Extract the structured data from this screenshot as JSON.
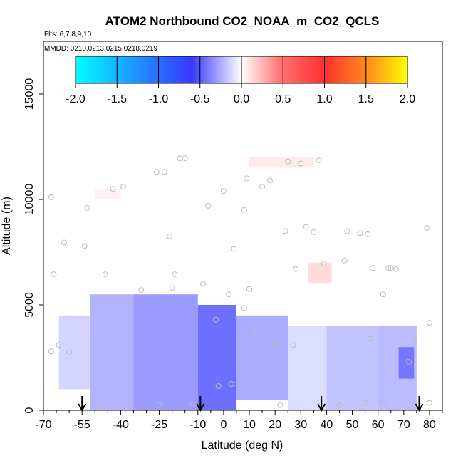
{
  "chart_data": {
    "type": "heatmap",
    "title": "ATOM2 Northbound CO2_NOAA_m_CO2_QCLS",
    "subtitle_flights": "Flts: 6,7,8,9,10",
    "subtitle_dates": "MMDD: 0210,0213,0215,0218,0219",
    "xlabel": "Latitude (deg N)",
    "ylabel": "Altitude (m)",
    "xlim": [
      -70,
      85
    ],
    "ylim": [
      0,
      17500
    ],
    "x_ticks": [
      -70,
      -55,
      -40,
      -25,
      -10,
      0,
      10,
      20,
      30,
      40,
      50,
      60,
      70,
      80
    ],
    "y_ticks": [
      0,
      5000,
      10000,
      15000
    ],
    "colorbar": {
      "min": -2.0,
      "max": 2.0,
      "ticks": [
        "-2.0",
        "-1.5",
        "-1.0",
        "-0.5",
        "0.0",
        "0.5",
        "1.0",
        "1.5",
        "2.0"
      ],
      "colors": [
        "#00ffff",
        "#2a6cff",
        "#3838ff",
        "#ffffff",
        "#ff3030",
        "#ff8c1a",
        "#ffff00"
      ]
    },
    "arrows_latitude": [
      -55,
      -9,
      38,
      76
    ],
    "regions": [
      {
        "lat": [
          -64,
          -52
        ],
        "alt": [
          1000,
          4500
        ],
        "value": -0.25
      },
      {
        "lat": [
          -52,
          -35
        ],
        "alt": [
          0,
          5500
        ],
        "value": -0.45
      },
      {
        "lat": [
          -35,
          -10
        ],
        "alt": [
          0,
          5500
        ],
        "value": -0.6
      },
      {
        "lat": [
          -10,
          5
        ],
        "alt": [
          0,
          5000
        ],
        "value": -0.85
      },
      {
        "lat": [
          5,
          25
        ],
        "alt": [
          500,
          4500
        ],
        "value": -0.5
      },
      {
        "lat": [
          25,
          40
        ],
        "alt": [
          0,
          4000
        ],
        "value": -0.2
      },
      {
        "lat": [
          40,
          60
        ],
        "alt": [
          0,
          4000
        ],
        "value": -0.35
      },
      {
        "lat": [
          60,
          75
        ],
        "alt": [
          0,
          4000
        ],
        "value": -0.4
      },
      {
        "lat": [
          68,
          74
        ],
        "alt": [
          1500,
          3000
        ],
        "value": -0.75
      },
      {
        "lat": [
          33,
          42
        ],
        "alt": [
          6000,
          7000
        ],
        "value": 0.2
      },
      {
        "lat": [
          10,
          35
        ],
        "alt": [
          11500,
          12000
        ],
        "value": 0.12
      },
      {
        "lat": [
          -50,
          -40
        ],
        "alt": [
          10000,
          10500
        ],
        "value": 0.08
      }
    ],
    "points": [
      {
        "lat": -67,
        "alt": 10100
      },
      {
        "lat": -62,
        "alt": 7950
      },
      {
        "lat": -66,
        "alt": 6450
      },
      {
        "lat": -67,
        "alt": 2800
      },
      {
        "lat": -64,
        "alt": 3100
      },
      {
        "lat": -60,
        "alt": 2750
      },
      {
        "lat": -54,
        "alt": 7800
      },
      {
        "lat": -53,
        "alt": 9600
      },
      {
        "lat": -43,
        "alt": 10500
      },
      {
        "lat": -39,
        "alt": 10600
      },
      {
        "lat": -46,
        "alt": 6450
      },
      {
        "lat": -44,
        "alt": 2800
      },
      {
        "lat": -43,
        "alt": 3600
      },
      {
        "lat": -32,
        "alt": 5700
      },
      {
        "lat": -26,
        "alt": 11300
      },
      {
        "lat": -23,
        "alt": 11300
      },
      {
        "lat": -21,
        "alt": 8250
      },
      {
        "lat": -20,
        "alt": 5800
      },
      {
        "lat": -19,
        "alt": 6450
      },
      {
        "lat": -17,
        "alt": 11950
      },
      {
        "lat": -15,
        "alt": 11950
      },
      {
        "lat": -8,
        "alt": 6000
      },
      {
        "lat": -6,
        "alt": 9700
      },
      {
        "lat": 0,
        "alt": 10400
      },
      {
        "lat": 2,
        "alt": 5500
      },
      {
        "lat": 4,
        "alt": 7650
      },
      {
        "lat": 8,
        "alt": 9500
      },
      {
        "lat": 9,
        "alt": 11000
      },
      {
        "lat": 10,
        "alt": 5750
      },
      {
        "lat": 15,
        "alt": 10600
      },
      {
        "lat": 18,
        "alt": 10900
      },
      {
        "lat": 20,
        "alt": 3200
      },
      {
        "lat": 24,
        "alt": 8500
      },
      {
        "lat": 25,
        "alt": 11800
      },
      {
        "lat": 30,
        "alt": 11700
      },
      {
        "lat": 32,
        "alt": 8700
      },
      {
        "lat": 35,
        "alt": 8450
      },
      {
        "lat": 37,
        "alt": 11850
      },
      {
        "lat": 39,
        "alt": 6950
      },
      {
        "lat": 28,
        "alt": 6700
      },
      {
        "lat": 27,
        "alt": 3100
      },
      {
        "lat": 47,
        "alt": 7100
      },
      {
        "lat": 48,
        "alt": 8500
      },
      {
        "lat": 53,
        "alt": 8400
      },
      {
        "lat": 56,
        "alt": 8350
      },
      {
        "lat": 58,
        "alt": 6750
      },
      {
        "lat": 62,
        "alt": 5500
      },
      {
        "lat": 64,
        "alt": 6750
      },
      {
        "lat": 65,
        "alt": 6750
      },
      {
        "lat": 67,
        "alt": 6700
      },
      {
        "lat": 57,
        "alt": 3400
      },
      {
        "lat": 72,
        "alt": 2300
      },
      {
        "lat": 74,
        "alt": 3400
      },
      {
        "lat": 79,
        "alt": 8650
      },
      {
        "lat": 80,
        "alt": 4150
      },
      {
        "lat": 80,
        "alt": 350
      },
      {
        "lat": -3,
        "alt": 4300
      },
      {
        "lat": -2,
        "alt": 1150
      },
      {
        "lat": 3,
        "alt": 1250
      },
      {
        "lat": 8,
        "alt": 4850
      },
      {
        "lat": 12,
        "alt": 3700
      },
      {
        "lat": -12,
        "alt": 300
      },
      {
        "lat": -25,
        "alt": 250
      },
      {
        "lat": -50,
        "alt": 250
      },
      {
        "lat": 22,
        "alt": 250
      },
      {
        "lat": 45,
        "alt": 250
      },
      {
        "lat": 55,
        "alt": 350
      },
      {
        "lat": 62,
        "alt": 350
      }
    ]
  }
}
